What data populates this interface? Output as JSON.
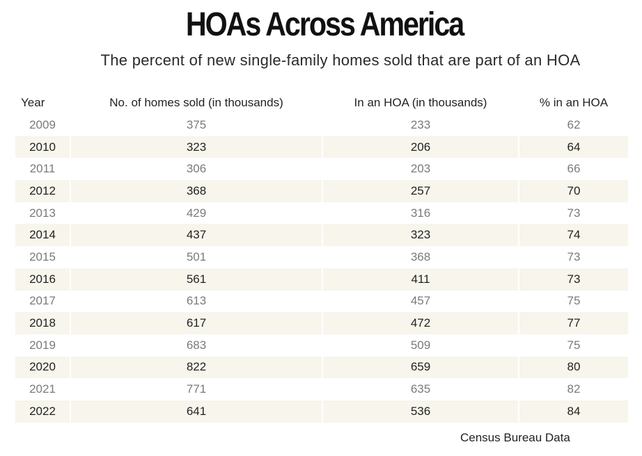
{
  "title": "HOAs Across America",
  "subtitle": "The percent of new single-family homes sold that are part of an HOA",
  "source": "Census Bureau Data",
  "colors": {
    "shaded_row": "#f7f5ec",
    "plain_text": "#7a7a7a",
    "bold_text": "#222222"
  },
  "chart_data": {
    "type": "table",
    "title": "HOAs Across America",
    "subtitle": "The percent of new single-family homes sold that are part of an HOA",
    "columns": [
      "Year",
      "No. of homes sold (in thousands)",
      "In an HOA (in thousands)",
      "% in an HOA"
    ],
    "rows": [
      [
        "2009",
        "375",
        "233",
        "62"
      ],
      [
        "2010",
        "323",
        "206",
        "64"
      ],
      [
        "2011",
        "306",
        "203",
        "66"
      ],
      [
        "2012",
        "368",
        "257",
        "70"
      ],
      [
        "2013",
        "429",
        "316",
        "73"
      ],
      [
        "2014",
        "437",
        "323",
        "74"
      ],
      [
        "2015",
        "501",
        "368",
        "73"
      ],
      [
        "2016",
        "561",
        "411",
        "73"
      ],
      [
        "2017",
        "613",
        "457",
        "75"
      ],
      [
        "2018",
        "617",
        "472",
        "77"
      ],
      [
        "2019",
        "683",
        "509",
        "75"
      ],
      [
        "2020",
        "822",
        "659",
        "80"
      ],
      [
        "2021",
        "771",
        "635",
        "82"
      ],
      [
        "2022",
        "641",
        "536",
        "84"
      ]
    ],
    "source": "Census Bureau Data"
  }
}
